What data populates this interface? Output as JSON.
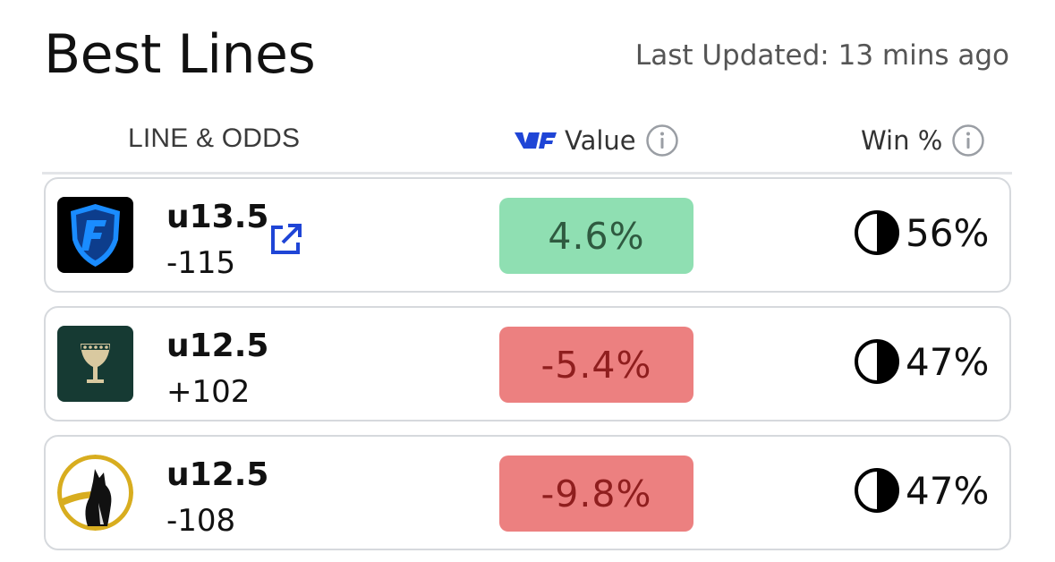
{
  "header": {
    "title": "Best Lines",
    "last_updated": "Last Updated: 13 mins ago"
  },
  "columns": {
    "line_odds": "LINE & ODDS",
    "value": "Value",
    "win": "Win %"
  },
  "colors": {
    "positive_value_bg": "#8fdfb2",
    "negative_value_bg": "#ec8080",
    "brand_blue": "#1f45d6"
  },
  "rows": [
    {
      "book_icon": "fanduel-shield-icon",
      "line": "u13.5",
      "odds": "-115",
      "value": "4.6%",
      "value_sign": "positive",
      "win": "56%",
      "has_external_link": true
    },
    {
      "book_icon": "goblet-icon",
      "line": "u12.5",
      "odds": "+102",
      "value": "-5.4%",
      "value_sign": "negative",
      "win": "47%",
      "has_external_link": false
    },
    {
      "book_icon": "fox-icon",
      "line": "u12.5",
      "odds": "-108",
      "value": "-9.8%",
      "value_sign": "negative",
      "win": "47%",
      "has_external_link": false
    }
  ]
}
